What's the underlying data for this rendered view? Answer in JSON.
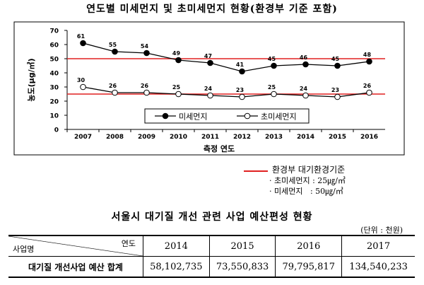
{
  "chart_data": {
    "type": "line",
    "title": "연도별 미세먼지 및 초미세먼지 현황(환경부 기준 포함)",
    "xlabel": "측정 연도",
    "ylabel": "농도(μg/㎥)",
    "categories": [
      "2007",
      "2008",
      "2009",
      "2010",
      "2011",
      "2012",
      "2013",
      "2014",
      "2015",
      "2016"
    ],
    "ylim": [
      0,
      70
    ],
    "yticks": [
      0,
      10,
      20,
      30,
      40,
      50,
      60,
      70
    ],
    "series": [
      {
        "name": "미세먼지",
        "values": [
          61,
          55,
          54,
          49,
          47,
          41,
          45,
          46,
          45,
          48
        ],
        "marker": "filled",
        "color": "#000000"
      },
      {
        "name": "초미세먼지",
        "values": [
          30,
          26,
          26,
          25,
          24,
          23,
          25,
          24,
          23,
          26
        ],
        "marker": "hollow",
        "color": "#000000"
      }
    ],
    "reference_lines": [
      {
        "label": "미세먼지",
        "value": 50,
        "color": "#e02020"
      },
      {
        "label": "초미세먼지",
        "value": 25,
        "color": "#e02020"
      }
    ],
    "legend_position": "bottom-center",
    "grid": false
  },
  "standard_legend": {
    "title": "환경부 대기환경기준",
    "items": [
      "· 초미세먼지 : 25㎍/㎥",
      "· 미세먼지   : 50㎍/㎥"
    ]
  },
  "budget_table": {
    "title": "서울시 대기질 개선 관련 사업 예산편성 현황",
    "unit": "(단위 : 천원)",
    "corner_top": "연도",
    "corner_bottom": "사업명",
    "years": [
      "2014",
      "2015",
      "2016",
      "2017"
    ],
    "row_label": "대기질 개선사업 예산 합계",
    "values": [
      "58,102,735",
      "73,550,833",
      "79,795,817",
      "134,540,233"
    ]
  }
}
